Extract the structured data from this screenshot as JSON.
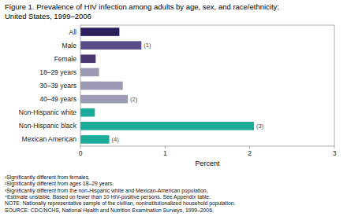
{
  "chart_data": {
    "type": "bar",
    "orientation": "horizontal",
    "title": "Figure 1. Prevalence of HIV infection among adults by age, sex, and race/ethnicity:",
    "subtitle": "United States, 1999–2006",
    "categories": [
      "All",
      "Male",
      "Female",
      "18–29 years",
      "30–39 years",
      "40–49 years",
      "Non-Hispanic white",
      "Non-Hispanic black",
      "Mexican American"
    ],
    "values": [
      0.46,
      0.72,
      0.18,
      0.22,
      0.5,
      0.56,
      0.17,
      2.05,
      0.34
    ],
    "colors": [
      "#2b1f5e",
      "#5a4e8a",
      "#4a3870",
      "#9b9bb5",
      "#9b9bb5",
      "#9b9bb5",
      "#1aab99",
      "#1aab99",
      "#1aab99"
    ],
    "annotations": [
      {
        "category": "Male",
        "text": "(1)"
      },
      {
        "category": "40–49 years",
        "text": "(2)"
      },
      {
        "category": "Non-Hispanic black",
        "text": "(3)"
      },
      {
        "category": "Mexican American",
        "text": "(4)"
      }
    ],
    "xlabel": "Percent",
    "xlim": [
      0,
      3
    ],
    "xticks": [
      0,
      1,
      2,
      3
    ],
    "grid": false,
    "footnotes": [
      "¹Significantly different from females.",
      "²Significantly different from ages 18–29 years.",
      "³Significantly different from the non-Hispanic white and Mexican-American population.",
      "⁴Estimate unstable. Based on fewer than 10 HIV-positive persons.  See Appendix table.",
      "NOTE: Nationally representative sample of the civilian, noninstitutionalized household population.",
      "SOURCE: CDC/NCHS, National Health and Nutrition Examination Surveys, 1999–2006."
    ]
  }
}
